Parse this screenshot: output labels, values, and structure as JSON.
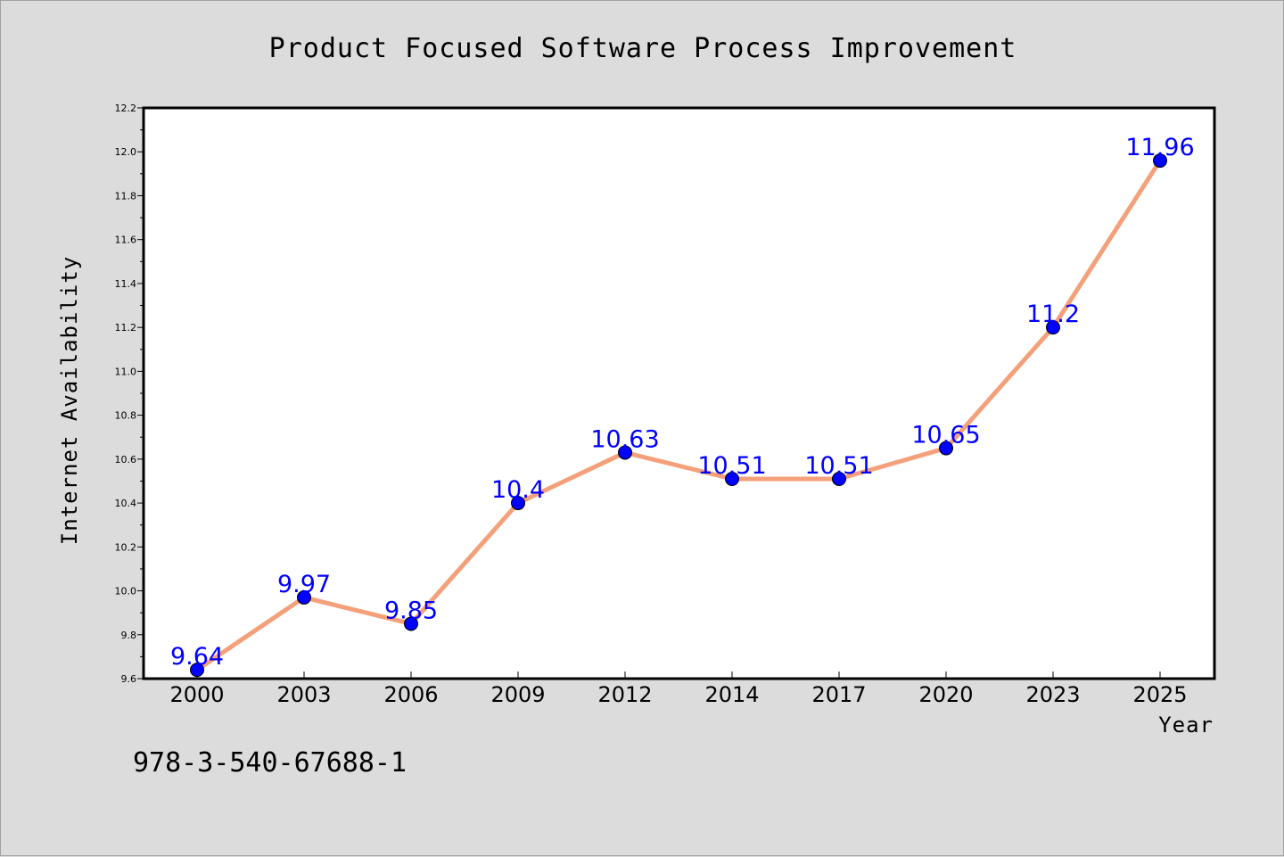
{
  "chart_data": {
    "type": "line",
    "title": "Product Focused Software Process Improvement",
    "xlabel": "Year",
    "ylabel": "Internet Availability",
    "categories": [
      "2000",
      "2003",
      "2006",
      "2009",
      "2012",
      "2014",
      "2017",
      "2020",
      "2023",
      "2025"
    ],
    "series": [
      {
        "values": [
          9.64,
          9.97,
          9.85,
          10.4,
          10.63,
          10.51,
          10.51,
          10.65,
          11.2,
          11.96
        ],
        "data_labels": [
          "9.64",
          "9.97",
          "9.85",
          "10.4",
          "10.63",
          "10.51",
          "10.51",
          "10.65",
          "11.2",
          "11.96"
        ],
        "line_color": "#f4a07a",
        "marker_color": "#0000ff"
      }
    ],
    "ylim": [
      9.6,
      12.2
    ],
    "yticks": [
      "9.6",
      "9.8",
      "10.0",
      "10.2",
      "10.4",
      "10.6",
      "10.8",
      "11.0",
      "11.2",
      "11.4",
      "11.6",
      "11.8",
      "12.0",
      "12.2"
    ],
    "grid": false,
    "legend": "none"
  },
  "footnote": "978-3-540-67688-1",
  "colors": {
    "background": "#dcdcdc",
    "plot_background": "#ffffff",
    "line": "#f4a07a",
    "marker": "#0000ff",
    "data_label": "#0000ff"
  }
}
